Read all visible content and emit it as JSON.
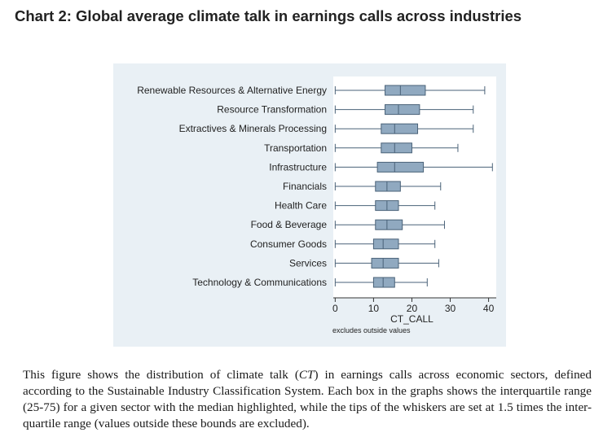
{
  "page_title": "Chart 2: Global average climate talk in earnings calls across industries",
  "chart_data": {
    "type": "boxplot",
    "orientation": "horizontal",
    "xlabel": "CT_CALL",
    "note": "excludes outside values",
    "xlim": [
      -0.5,
      42
    ],
    "xticks": [
      0,
      10,
      20,
      30,
      40
    ],
    "grid": false,
    "colors": {
      "box_fill": "#90a9c0",
      "box_stroke": "#4a6278",
      "whisker": "#4a6278",
      "panel_bg": "#e9f0f5",
      "plot_bg": "#ffffff"
    },
    "series": [
      {
        "category": "Renewable Resources & Alternative Energy",
        "whisker_low": 0,
        "q1": 13,
        "median": 17,
        "q3": 23.5,
        "whisker_high": 39
      },
      {
        "category": "Resource Transformation",
        "whisker_low": 0,
        "q1": 13,
        "median": 16.5,
        "q3": 22,
        "whisker_high": 36
      },
      {
        "category": "Extractives & Minerals Processing",
        "whisker_low": 0,
        "q1": 12,
        "median": 15.5,
        "q3": 21.5,
        "whisker_high": 36
      },
      {
        "category": "Transportation",
        "whisker_low": 0,
        "q1": 12,
        "median": 15.5,
        "q3": 20,
        "whisker_high": 32
      },
      {
        "category": "Infrastructure",
        "whisker_low": 0,
        "q1": 11,
        "median": 15.5,
        "q3": 23,
        "whisker_high": 41
      },
      {
        "category": "Financials",
        "whisker_low": 0,
        "q1": 10.5,
        "median": 13.5,
        "q3": 17,
        "whisker_high": 27.5
      },
      {
        "category": "Health Care",
        "whisker_low": 0,
        "q1": 10.5,
        "median": 13.5,
        "q3": 16.5,
        "whisker_high": 26
      },
      {
        "category": "Food & Beverage",
        "whisker_low": 0,
        "q1": 10.5,
        "median": 13.5,
        "q3": 17.5,
        "whisker_high": 28.5
      },
      {
        "category": "Consumer Goods",
        "whisker_low": 0,
        "q1": 10,
        "median": 12.5,
        "q3": 16.5,
        "whisker_high": 26
      },
      {
        "category": "Services",
        "whisker_low": 0,
        "q1": 9.5,
        "median": 12.5,
        "q3": 16.5,
        "whisker_high": 27
      },
      {
        "category": "Technology & Communications",
        "whisker_low": 0,
        "q1": 10,
        "median": 12.5,
        "q3": 15.5,
        "whisker_high": 24
      }
    ]
  },
  "caption": {
    "part1": "This figure shows the distribution of climate talk (",
    "ct": "CT",
    "part2": ") in earnings calls across economic sectors, defined according to the Sustainable Industry Classification System. Each box in the graphs shows the interquartile range (25-75) for a given sector with the median highlighted, while the tips of the whiskers are set at 1.5 times the inter-quartile range (values outside these bounds are excluded)."
  }
}
